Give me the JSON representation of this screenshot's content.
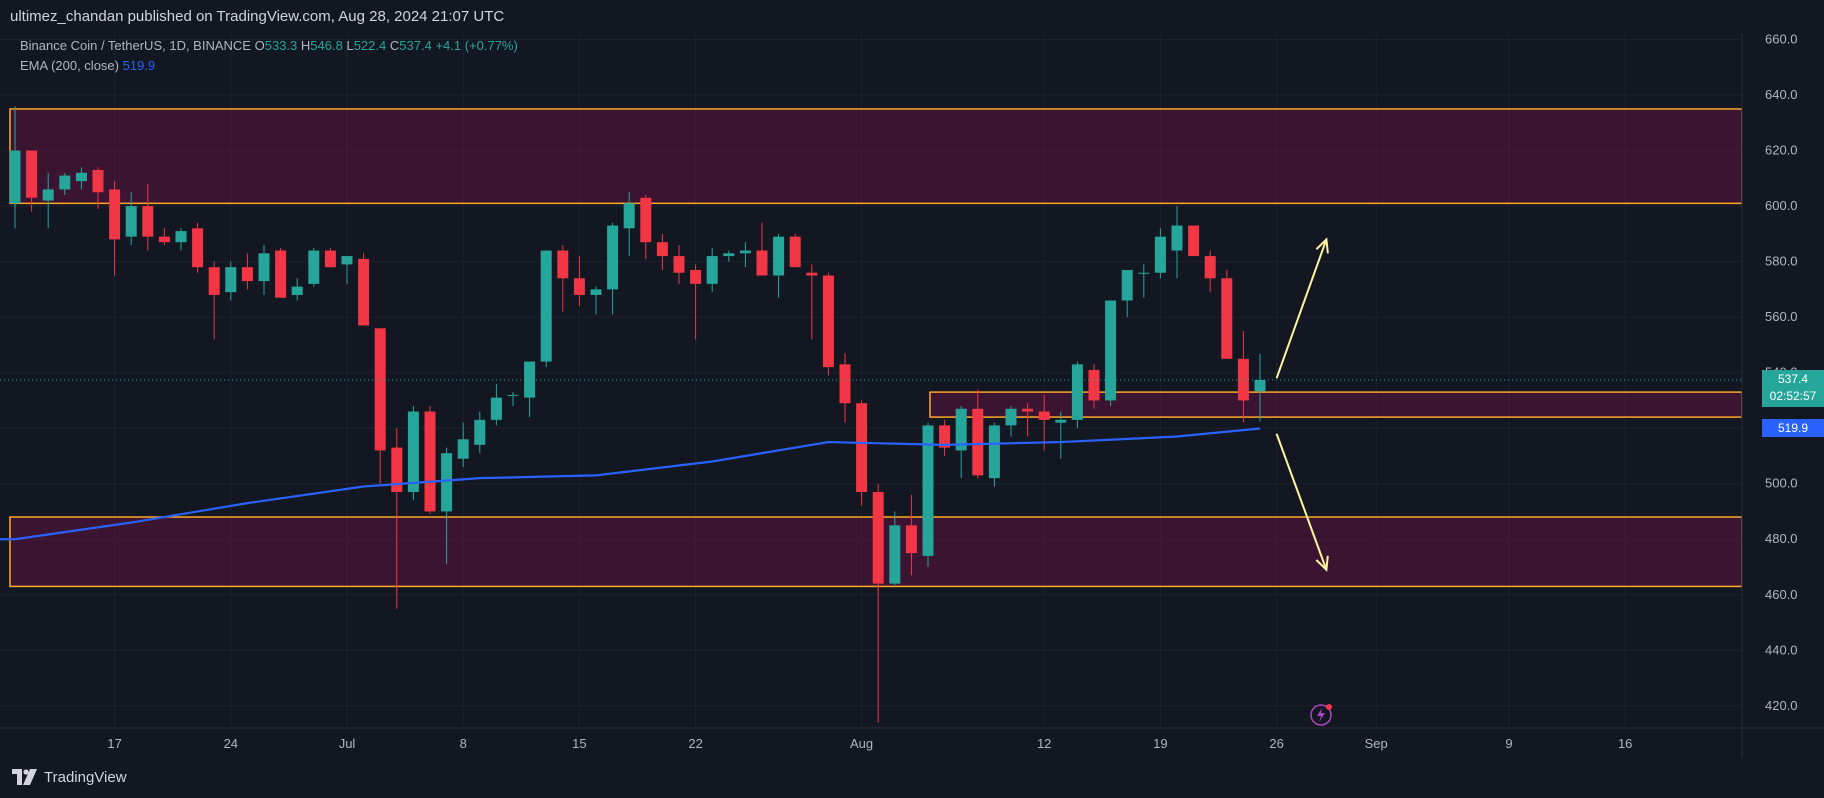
{
  "header": {
    "publisher": "ultimez_chandan published on TradingView.com, Aug 28, 2024 21:07 UTC"
  },
  "legend": {
    "symbol": "Binance Coin / TetherUS, 1D, BINANCE",
    "o_label": "O",
    "o": "533.3",
    "h_label": "H",
    "h": "546.8",
    "l_label": "L",
    "l": "522.4",
    "c_label": "C",
    "c": "537.4",
    "change": "+4.1 (+0.77%)",
    "ema_label": "EMA (200, close)",
    "ema_value": "519.9"
  },
  "price_badges": {
    "last": "537.4",
    "countdown": "02:52:57",
    "ema": "519.9"
  },
  "footer": {
    "brand": "TradingView"
  },
  "colors": {
    "up": "#26a69a",
    "down": "#f23645",
    "ema": "#2962ff",
    "zone": "#ffa726",
    "arrow": "#fff59d",
    "background": "#131722"
  },
  "chart_data": {
    "type": "candlestick",
    "y_axis": {
      "ylim": [
        412,
        662
      ],
      "ticks": [
        420,
        440,
        460,
        480,
        500,
        520,
        540,
        560,
        580,
        600,
        620,
        640,
        660
      ],
      "position": "right"
    },
    "x_axis": {
      "tick_labels": [
        {
          "label": "17",
          "date": "2024-06-17"
        },
        {
          "label": "24",
          "date": "2024-06-24"
        },
        {
          "label": "Jul",
          "date": "2024-07-01"
        },
        {
          "label": "8",
          "date": "2024-07-08"
        },
        {
          "label": "15",
          "date": "2024-07-15"
        },
        {
          "label": "22",
          "date": "2024-07-22"
        },
        {
          "label": "Aug",
          "date": "2024-08-01"
        },
        {
          "label": "12",
          "date": "2024-08-12"
        },
        {
          "label": "19",
          "date": "2024-08-19"
        },
        {
          "label": "26",
          "date": "2024-08-26"
        },
        {
          "label": "Sep",
          "date": "2024-09-01"
        },
        {
          "label": "9",
          "date": "2024-09-09"
        },
        {
          "label": "16",
          "date": "2024-09-16"
        }
      ]
    },
    "grid": true,
    "candles": [
      {
        "date": "2024-06-11",
        "o": 601,
        "h": 636,
        "l": 592,
        "c": 620
      },
      {
        "date": "2024-06-12",
        "o": 620,
        "h": 620,
        "l": 598,
        "c": 603
      },
      {
        "date": "2024-06-13",
        "o": 602,
        "h": 612,
        "l": 592,
        "c": 606
      },
      {
        "date": "2024-06-14",
        "o": 606,
        "h": 612,
        "l": 604,
        "c": 611
      },
      {
        "date": "2024-06-15",
        "o": 609,
        "h": 614,
        "l": 606,
        "c": 612
      },
      {
        "date": "2024-06-16",
        "o": 613,
        "h": 614,
        "l": 599,
        "c": 605
      },
      {
        "date": "2024-06-17",
        "o": 606,
        "h": 609,
        "l": 575,
        "c": 588
      },
      {
        "date": "2024-06-18",
        "o": 589,
        "h": 605,
        "l": 586,
        "c": 600
      },
      {
        "date": "2024-06-19",
        "o": 600,
        "h": 608,
        "l": 584,
        "c": 589
      },
      {
        "date": "2024-06-20",
        "o": 589,
        "h": 592,
        "l": 586,
        "c": 587
      },
      {
        "date": "2024-06-21",
        "o": 587,
        "h": 592,
        "l": 584,
        "c": 591
      },
      {
        "date": "2024-06-22",
        "o": 592,
        "h": 594,
        "l": 576,
        "c": 578
      },
      {
        "date": "2024-06-23",
        "o": 578,
        "h": 580,
        "l": 552,
        "c": 568
      },
      {
        "date": "2024-06-24",
        "o": 569,
        "h": 580,
        "l": 566,
        "c": 578
      },
      {
        "date": "2024-06-25",
        "o": 578,
        "h": 583,
        "l": 570,
        "c": 573
      },
      {
        "date": "2024-06-26",
        "o": 573,
        "h": 586,
        "l": 568,
        "c": 583
      },
      {
        "date": "2024-06-27",
        "o": 584,
        "h": 585,
        "l": 567,
        "c": 567
      },
      {
        "date": "2024-06-28",
        "o": 568,
        "h": 574,
        "l": 566,
        "c": 571
      },
      {
        "date": "2024-06-29",
        "o": 572,
        "h": 585,
        "l": 571,
        "c": 584
      },
      {
        "date": "2024-06-30",
        "o": 584,
        "h": 585,
        "l": 578,
        "c": 578
      },
      {
        "date": "2024-07-01",
        "o": 579,
        "h": 582,
        "l": 572,
        "c": 582
      },
      {
        "date": "2024-07-02",
        "o": 581,
        "h": 583,
        "l": 557,
        "c": 557
      },
      {
        "date": "2024-07-03",
        "o": 556,
        "h": 556,
        "l": 500,
        "c": 512
      },
      {
        "date": "2024-07-04",
        "o": 513,
        "h": 520,
        "l": 455,
        "c": 497
      },
      {
        "date": "2024-07-05",
        "o": 497,
        "h": 528,
        "l": 494,
        "c": 526
      },
      {
        "date": "2024-07-06",
        "o": 526,
        "h": 528,
        "l": 489,
        "c": 490
      },
      {
        "date": "2024-07-07",
        "o": 490,
        "h": 513,
        "l": 471,
        "c": 511
      },
      {
        "date": "2024-07-08",
        "o": 509,
        "h": 522,
        "l": 506,
        "c": 516
      },
      {
        "date": "2024-07-09",
        "o": 514,
        "h": 526,
        "l": 511,
        "c": 523
      },
      {
        "date": "2024-07-10",
        "o": 523,
        "h": 536,
        "l": 521,
        "c": 531
      },
      {
        "date": "2024-07-11",
        "o": 532,
        "h": 533,
        "l": 528,
        "c": 532
      },
      {
        "date": "2024-07-12",
        "o": 531,
        "h": 544,
        "l": 524,
        "c": 544
      },
      {
        "date": "2024-07-13",
        "o": 544,
        "h": 582,
        "l": 542,
        "c": 584
      },
      {
        "date": "2024-07-14",
        "o": 584,
        "h": 586,
        "l": 562,
        "c": 574
      },
      {
        "date": "2024-07-15",
        "o": 574,
        "h": 582,
        "l": 564,
        "c": 568
      },
      {
        "date": "2024-07-16",
        "o": 568,
        "h": 571,
        "l": 561,
        "c": 570
      },
      {
        "date": "2024-07-17",
        "o": 570,
        "h": 594,
        "l": 561,
        "c": 593
      },
      {
        "date": "2024-07-18",
        "o": 592,
        "h": 605,
        "l": 582,
        "c": 601
      },
      {
        "date": "2024-07-19",
        "o": 603,
        "h": 604,
        "l": 581,
        "c": 587
      },
      {
        "date": "2024-07-20",
        "o": 587,
        "h": 590,
        "l": 577,
        "c": 582
      },
      {
        "date": "2024-07-21",
        "o": 582,
        "h": 586,
        "l": 572,
        "c": 576
      },
      {
        "date": "2024-07-22",
        "o": 577,
        "h": 579,
        "l": 552,
        "c": 572
      },
      {
        "date": "2024-07-23",
        "o": 572,
        "h": 585,
        "l": 569,
        "c": 582
      },
      {
        "date": "2024-07-24",
        "o": 582,
        "h": 584,
        "l": 580,
        "c": 583
      },
      {
        "date": "2024-07-25",
        "o": 583,
        "h": 587,
        "l": 578,
        "c": 584
      },
      {
        "date": "2024-07-26",
        "o": 584,
        "h": 594,
        "l": 575,
        "c": 575
      },
      {
        "date": "2024-07-27",
        "o": 575,
        "h": 590,
        "l": 567,
        "c": 589
      },
      {
        "date": "2024-07-28",
        "o": 589,
        "h": 590,
        "l": 578,
        "c": 578
      },
      {
        "date": "2024-07-29",
        "o": 576,
        "h": 579,
        "l": 552,
        "c": 575
      },
      {
        "date": "2024-07-30",
        "o": 575,
        "h": 576,
        "l": 539,
        "c": 542
      },
      {
        "date": "2024-07-31",
        "o": 543,
        "h": 547,
        "l": 522,
        "c": 529
      },
      {
        "date": "2024-08-01",
        "o": 529,
        "h": 530,
        "l": 492,
        "c": 497
      },
      {
        "date": "2024-08-02",
        "o": 497,
        "h": 500,
        "l": 414,
        "c": 464
      },
      {
        "date": "2024-08-03",
        "o": 464,
        "h": 490,
        "l": 463,
        "c": 485
      },
      {
        "date": "2024-08-04",
        "o": 485,
        "h": 496,
        "l": 467,
        "c": 475
      },
      {
        "date": "2024-08-05",
        "o": 474,
        "h": 522,
        "l": 470,
        "c": 521
      },
      {
        "date": "2024-08-06",
        "o": 521,
        "h": 523,
        "l": 510,
        "c": 513
      },
      {
        "date": "2024-08-07",
        "o": 512,
        "h": 528,
        "l": 502,
        "c": 527
      },
      {
        "date": "2024-08-08",
        "o": 527,
        "h": 534,
        "l": 502,
        "c": 503
      },
      {
        "date": "2024-08-09",
        "o": 502,
        "h": 522,
        "l": 499,
        "c": 521
      },
      {
        "date": "2024-08-10",
        "o": 521,
        "h": 528,
        "l": 517,
        "c": 527
      },
      {
        "date": "2024-08-11",
        "o": 527,
        "h": 529,
        "l": 517,
        "c": 526
      },
      {
        "date": "2024-08-12",
        "o": 526,
        "h": 532,
        "l": 512,
        "c": 523
      },
      {
        "date": "2024-08-13",
        "o": 522,
        "h": 526,
        "l": 509,
        "c": 523
      },
      {
        "date": "2024-08-14",
        "o": 523,
        "h": 544,
        "l": 520,
        "c": 543
      },
      {
        "date": "2024-08-15",
        "o": 541,
        "h": 543,
        "l": 527,
        "c": 530
      },
      {
        "date": "2024-08-16",
        "o": 530,
        "h": 566,
        "l": 528,
        "c": 566
      },
      {
        "date": "2024-08-17",
        "o": 566,
        "h": 576,
        "l": 560,
        "c": 577
      },
      {
        "date": "2024-08-18",
        "o": 576,
        "h": 579,
        "l": 567,
        "c": 576
      },
      {
        "date": "2024-08-19",
        "o": 576,
        "h": 592,
        "l": 574,
        "c": 589
      },
      {
        "date": "2024-08-20",
        "o": 584,
        "h": 600,
        "l": 574,
        "c": 593
      },
      {
        "date": "2024-08-21",
        "o": 593,
        "h": 593,
        "l": 582,
        "c": 582
      },
      {
        "date": "2024-08-22",
        "o": 582,
        "h": 584,
        "l": 569,
        "c": 574
      },
      {
        "date": "2024-08-23",
        "o": 574,
        "h": 577,
        "l": 545,
        "c": 545
      },
      {
        "date": "2024-08-24",
        "o": 545,
        "h": 555,
        "l": 522,
        "c": 530
      },
      {
        "date": "2024-08-25",
        "o": 533.3,
        "h": 546.8,
        "l": 522.4,
        "c": 537.4
      }
    ],
    "ema_200": {
      "name": "EMA (200, close)",
      "points": [
        {
          "date": "2024-06-11",
          "v": 480
        },
        {
          "date": "2024-06-18",
          "v": 486
        },
        {
          "date": "2024-06-25",
          "v": 493
        },
        {
          "date": "2024-07-02",
          "v": 499
        },
        {
          "date": "2024-07-09",
          "v": 502
        },
        {
          "date": "2024-07-16",
          "v": 503
        },
        {
          "date": "2024-07-23",
          "v": 508
        },
        {
          "date": "2024-07-30",
          "v": 515
        },
        {
          "date": "2024-08-06",
          "v": 514
        },
        {
          "date": "2024-08-13",
          "v": 515
        },
        {
          "date": "2024-08-20",
          "v": 517
        },
        {
          "date": "2024-08-25",
          "v": 519.9
        }
      ]
    },
    "zones": [
      {
        "top": 635,
        "bottom": 601
      },
      {
        "top": 533,
        "bottom": 524
      },
      {
        "top": 488,
        "bottom": 463
      }
    ],
    "arrows": [
      {
        "direction": "up",
        "from": {
          "date": "2024-08-26",
          "v": 538
        },
        "to": {
          "date": "2024-08-29",
          "v": 588
        }
      },
      {
        "direction": "down",
        "from": {
          "date": "2024-08-26",
          "v": 518
        },
        "to": {
          "date": "2024-08-29",
          "v": 469
        }
      }
    ],
    "last_price": 537.4
  }
}
